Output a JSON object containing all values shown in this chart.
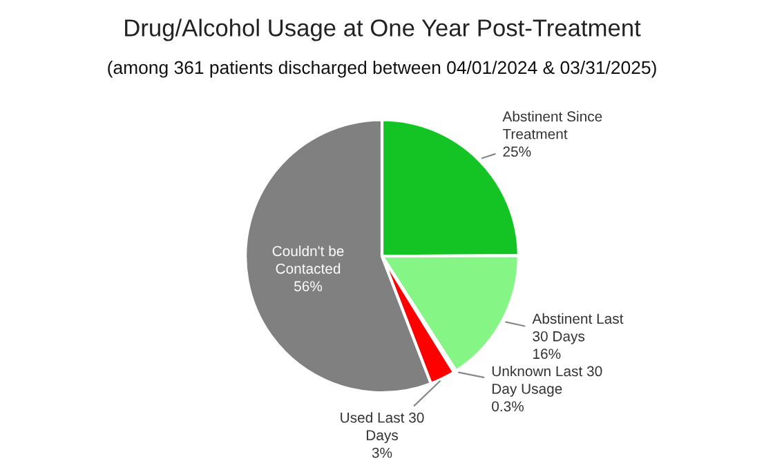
{
  "chart_data": {
    "type": "pie",
    "title": "Drug/Alcohol Usage at One Year Post-Treatment",
    "subtitle": "(among 361 patients discharged between 04/01/2024 & 03/31/2025)",
    "categories": [
      "Abstinent Since Treatment",
      "Abstinent Last 30 Days",
      "Unknown Last 30 Day Usage",
      "Used Last 30 Days",
      "Couldn't be Contacted"
    ],
    "values": [
      25,
      16,
      0.3,
      3,
      56
    ],
    "colors": [
      "#14c424",
      "#85f585",
      "#d9d9d9",
      "#ff0000",
      "#808080"
    ],
    "value_labels": [
      "25%",
      "16%",
      "0.3%",
      "3%",
      "56%"
    ],
    "legend": false
  }
}
